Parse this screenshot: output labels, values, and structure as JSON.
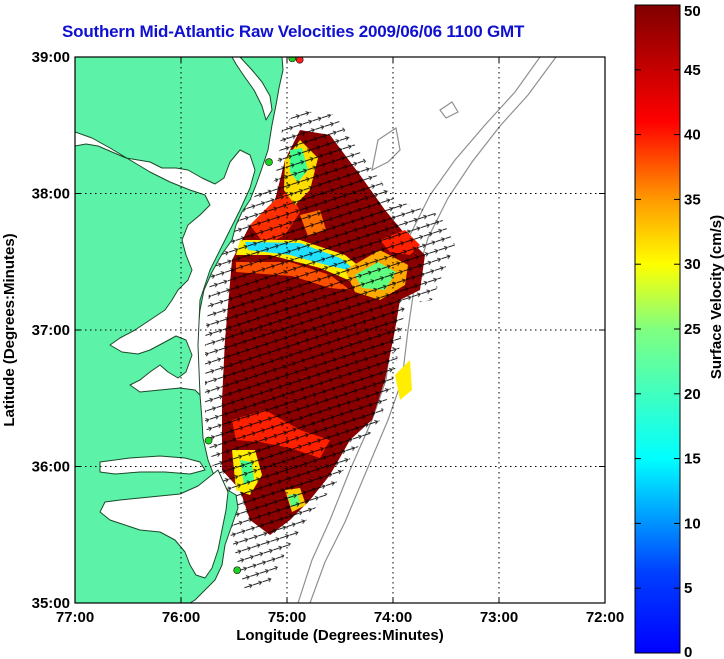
{
  "chart_data": {
    "type": "heatmap",
    "title": "Southern Mid-Atlantic Raw Velocities 2009/06/06 1100 GMT",
    "xlabel": "Longitude (Degrees:Minutes)",
    "ylabel": "Latitude (Degrees:Minutes)",
    "xlim": [
      -77,
      -72
    ],
    "ylim": [
      35,
      39
    ],
    "x_ticks": [
      {
        "value": -77,
        "label": "77:00"
      },
      {
        "value": -76,
        "label": "76:00"
      },
      {
        "value": -75,
        "label": "75:00"
      },
      {
        "value": -74,
        "label": "74:00"
      },
      {
        "value": -73,
        "label": "73:00"
      },
      {
        "value": -72,
        "label": "72:00"
      }
    ],
    "y_ticks": [
      {
        "value": 35,
        "label": "35:00"
      },
      {
        "value": 36,
        "label": "36:00"
      },
      {
        "value": 37,
        "label": "37:00"
      },
      {
        "value": 38,
        "label": "38:00"
      },
      {
        "value": 39,
        "label": "39:00"
      }
    ],
    "grid": true,
    "colorbar": {
      "label": "Surface Velocity (cm/s)",
      "min": 0,
      "max": 50,
      "ticks": [
        0,
        5,
        10,
        15,
        20,
        25,
        30,
        35,
        40,
        45,
        50
      ],
      "colormap": "jet"
    },
    "land_color": "#5cf2a8",
    "coast_color": "#1a4a2a",
    "bathymetry_color": "#909090",
    "stations": [
      {
        "lon": -74.88,
        "lat": 38.98,
        "color": "#ff2020"
      },
      {
        "lon": -74.95,
        "lat": 38.99,
        "color": "#20d020"
      },
      {
        "lon": -75.17,
        "lat": 38.23,
        "color": "#20d020"
      },
      {
        "lon": -75.74,
        "lat": 36.19,
        "color": "#20d020"
      },
      {
        "lon": -75.47,
        "lat": 35.24,
        "color": "#20d020"
      }
    ]
  }
}
